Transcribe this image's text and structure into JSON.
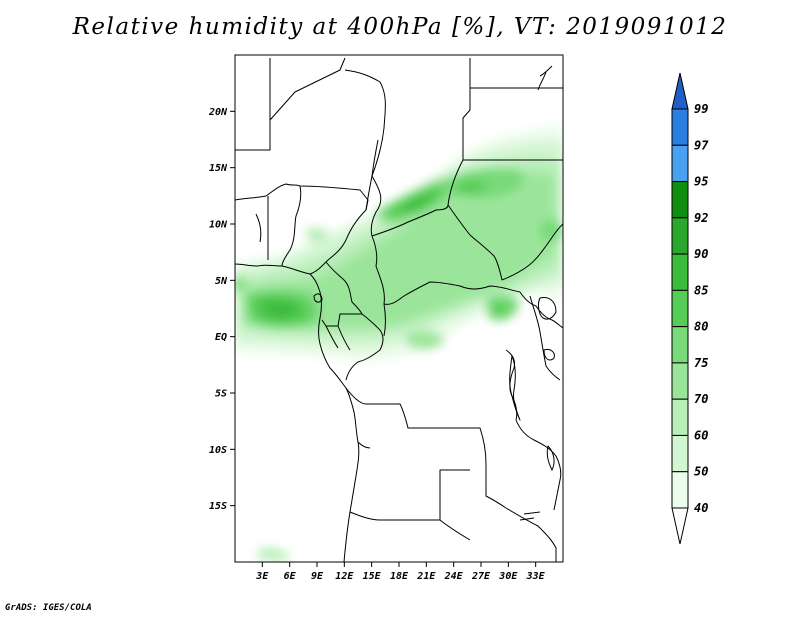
{
  "title": "Relative humidity at 400hPa [%], VT: 2019091012",
  "credit": "GrADS: IGES/COLA",
  "map": {
    "lon_range": [
      0,
      36
    ],
    "lat_range": [
      -20,
      25
    ],
    "lat_ticks": [
      "20N",
      "15N",
      "10N",
      "5N",
      "EQ",
      "5S",
      "10S",
      "15S"
    ],
    "lon_ticks": [
      "3E",
      "6E",
      "9E",
      "12E",
      "15E",
      "18E",
      "21E",
      "24E",
      "27E",
      "30E",
      "33E"
    ]
  },
  "colorbar": {
    "levels": [
      "99",
      "97",
      "95",
      "92",
      "90",
      "85",
      "80",
      "75",
      "70",
      "60",
      "50",
      "40"
    ],
    "colors": [
      "#1f5fc8",
      "#2a7fe0",
      "#4aa0f0",
      "#108e10",
      "#2ba82b",
      "#3cbc3c",
      "#55cc55",
      "#78da78",
      "#9be59b",
      "#b8eeb8",
      "#d2f5d2",
      "#ecfcec",
      "#ffffff"
    ]
  }
}
